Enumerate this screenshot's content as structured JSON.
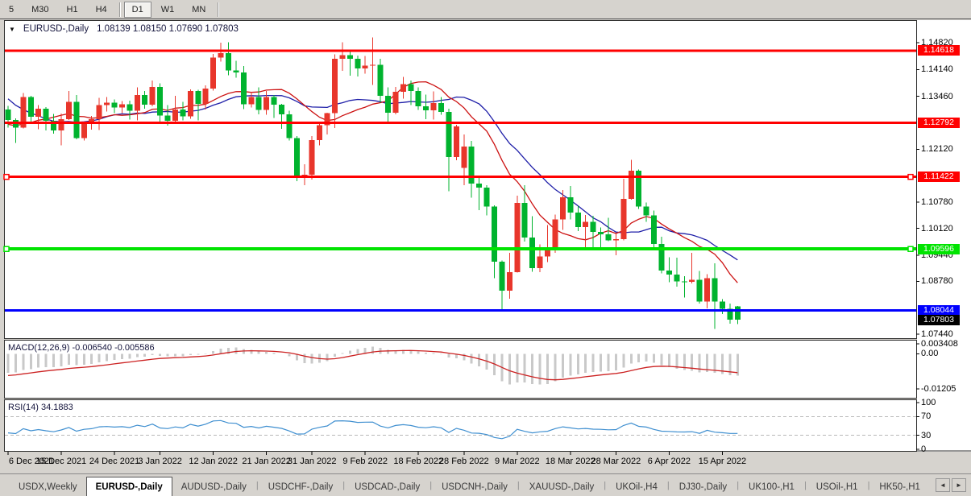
{
  "toolbar": {
    "buttons": [
      {
        "label": "5",
        "active": false
      },
      {
        "label": "M30",
        "active": false
      },
      {
        "label": "H1",
        "active": false
      },
      {
        "label": "H4",
        "active": false
      },
      {
        "label": "D1",
        "active": true
      },
      {
        "label": "W1",
        "active": false
      },
      {
        "label": "MN",
        "active": false
      }
    ],
    "group_breaks_after": [
      "H4",
      "MN"
    ]
  },
  "chart": {
    "title": {
      "collapse": "▼",
      "symbol": "EURUSD-,Daily",
      "ohlc": "1.08139 1.08150 1.07690 1.07803"
    },
    "price_axis": {
      "ticks": [
        {
          "label": "1.14820",
          "price": 1.1482
        },
        {
          "label": "1.14140",
          "price": 1.1414
        },
        {
          "label": "1.13460",
          "price": 1.1346
        },
        {
          "label": "1.12120",
          "price": 1.1212
        },
        {
          "label": "1.10780",
          "price": 1.1078
        },
        {
          "label": "1.10120",
          "price": 1.1012
        },
        {
          "label": "1.09440",
          "price": 1.0944
        },
        {
          "label": "1.08780",
          "price": 1.0878
        },
        {
          "label": "1.07440",
          "price": 1.0744
        }
      ]
    },
    "hlines": [
      {
        "label": "1.14618",
        "price": 1.14618,
        "color": "#ff0000",
        "width": 3,
        "selected": false
      },
      {
        "label": "1.12792",
        "price": 1.12792,
        "color": "#ff0000",
        "width": 3,
        "selected": false
      },
      {
        "label": "1.11422",
        "price": 1.11422,
        "color": "#ff0000",
        "width": 3,
        "selected": true
      },
      {
        "label": "1.09596",
        "price": 1.09596,
        "color": "#00e400",
        "width": 4,
        "selected": true
      },
      {
        "label": "1.08044",
        "price": 1.08044,
        "color": "#0000ff",
        "width": 3,
        "selected": false
      }
    ],
    "current_price": {
      "label": "1.07803",
      "price": 1.07803,
      "bg": "#000000"
    },
    "colors": {
      "bull": "#e8362b",
      "bear": "#00b32e",
      "ma_fast": "#cc1111",
      "ma_slow": "#1f1fa8",
      "macd_bar": "#c9c9c9",
      "macd_signal": "#cc2222",
      "rsi_line": "#3f8fd0",
      "window_bg": "#d6d3ce"
    },
    "moving_averages": [
      {
        "name": "ma-fast",
        "period": 13,
        "color_key": "ma_fast"
      },
      {
        "name": "ma-slow",
        "period": 20,
        "color_key": "ma_slow"
      }
    ],
    "date_axis": [
      {
        "label": "6 Dec 2021",
        "i": 0
      },
      {
        "label": "15 Dec 2021",
        "i": 7
      },
      {
        "label": "24 Dec 2021",
        "i": 14
      },
      {
        "label": "3 Jan 2022",
        "i": 20
      },
      {
        "label": "12 Jan 2022",
        "i": 27
      },
      {
        "label": "21 Jan 2022",
        "i": 34
      },
      {
        "label": "31 Jan 2022",
        "i": 40
      },
      {
        "label": "9 Feb 2022",
        "i": 47
      },
      {
        "label": "18 Feb 2022",
        "i": 54
      },
      {
        "label": "28 Feb 2022",
        "i": 60
      },
      {
        "label": "9 Mar 2022",
        "i": 67
      },
      {
        "label": "18 Mar 2022",
        "i": 74
      },
      {
        "label": "28 Mar 2022",
        "i": 80
      },
      {
        "label": "6 Apr 2022",
        "i": 87
      },
      {
        "label": "15 Apr 2022",
        "i": 94
      }
    ],
    "prehistory_closes": [
      1.1605,
      1.158,
      1.157,
      1.1556,
      1.1567,
      1.1588,
      1.1592,
      1.1559,
      1.1478,
      1.1445,
      1.145,
      1.1372,
      1.132,
      1.1315,
      1.128,
      1.1254,
      1.1236,
      1.1245,
      1.1198,
      1.1225,
      1.1278,
      1.133,
      1.1287,
      1.134,
      1.1305
    ],
    "candles": [
      [
        1.1313,
        1.1322,
        1.1267,
        1.1286
      ],
      [
        1.1286,
        1.129,
        1.1228,
        1.1267
      ],
      [
        1.1267,
        1.1355,
        1.1265,
        1.1344
      ],
      [
        1.1344,
        1.1347,
        1.128,
        1.1294
      ],
      [
        1.1294,
        1.1324,
        1.1263,
        1.1315
      ],
      [
        1.1315,
        1.1319,
        1.126,
        1.1284
      ],
      [
        1.1284,
        1.1302,
        1.1252,
        1.126
      ],
      [
        1.126,
        1.1303,
        1.1222,
        1.1288
      ],
      [
        1.1288,
        1.136,
        1.1286,
        1.1332
      ],
      [
        1.1332,
        1.1349,
        1.1237,
        1.124
      ],
      [
        1.124,
        1.1282,
        1.1234,
        1.1276
      ],
      [
        1.1276,
        1.1296,
        1.1262,
        1.1288
      ],
      [
        1.1288,
        1.1342,
        1.1261,
        1.1324
      ],
      [
        1.1324,
        1.1344,
        1.1308,
        1.133
      ],
      [
        1.133,
        1.1338,
        1.1304,
        1.1318
      ],
      [
        1.1318,
        1.1334,
        1.1304,
        1.1326
      ],
      [
        1.1326,
        1.1335,
        1.1287,
        1.131
      ],
      [
        1.131,
        1.1369,
        1.1285,
        1.1349
      ],
      [
        1.1349,
        1.136,
        1.1315,
        1.1325
      ],
      [
        1.1325,
        1.1386,
        1.1321,
        1.137
      ],
      [
        1.137,
        1.1379,
        1.1279,
        1.1297
      ],
      [
        1.1297,
        1.1324,
        1.1272,
        1.1284
      ],
      [
        1.1284,
        1.1347,
        1.128,
        1.1313
      ],
      [
        1.1313,
        1.1332,
        1.1285,
        1.1295
      ],
      [
        1.1295,
        1.1364,
        1.1289,
        1.136
      ],
      [
        1.136,
        1.1363,
        1.1285,
        1.1327
      ],
      [
        1.1327,
        1.1374,
        1.1313,
        1.1366
      ],
      [
        1.1366,
        1.1453,
        1.1361,
        1.1444
      ],
      [
        1.1444,
        1.1482,
        1.1434,
        1.1455
      ],
      [
        1.1455,
        1.1483,
        1.1399,
        1.1412
      ],
      [
        1.1412,
        1.1436,
        1.1393,
        1.1407
      ],
      [
        1.1407,
        1.1423,
        1.1314,
        1.1326
      ],
      [
        1.1326,
        1.1358,
        1.1318,
        1.1344
      ],
      [
        1.1344,
        1.1369,
        1.1301,
        1.1312
      ],
      [
        1.1312,
        1.136,
        1.13,
        1.1344
      ],
      [
        1.1344,
        1.1349,
        1.1291,
        1.1325
      ],
      [
        1.1325,
        1.1327,
        1.1264,
        1.1301
      ],
      [
        1.1301,
        1.131,
        1.1234,
        1.124
      ],
      [
        1.124,
        1.1245,
        1.1131,
        1.1145
      ],
      [
        1.1145,
        1.1174,
        1.1121,
        1.1148
      ],
      [
        1.1148,
        1.1245,
        1.1135,
        1.1235
      ],
      [
        1.1235,
        1.1279,
        1.1222,
        1.1273
      ],
      [
        1.1273,
        1.1305,
        1.125,
        1.1304
      ],
      [
        1.1304,
        1.1452,
        1.1266,
        1.1441
      ],
      [
        1.1441,
        1.1483,
        1.1411,
        1.145
      ],
      [
        1.145,
        1.1459,
        1.1398,
        1.1441
      ],
      [
        1.1441,
        1.1449,
        1.1396,
        1.1417
      ],
      [
        1.1417,
        1.1448,
        1.1404,
        1.1424
      ],
      [
        1.1424,
        1.1495,
        1.1375,
        1.1426
      ],
      [
        1.1426,
        1.1441,
        1.133,
        1.1347
      ],
      [
        1.1347,
        1.1369,
        1.1278,
        1.1305
      ],
      [
        1.1305,
        1.137,
        1.1301,
        1.1358
      ],
      [
        1.1358,
        1.1395,
        1.134,
        1.1377
      ],
      [
        1.1377,
        1.1386,
        1.1324,
        1.136
      ],
      [
        1.136,
        1.1369,
        1.1312,
        1.1321
      ],
      [
        1.1321,
        1.135,
        1.1288,
        1.1311
      ],
      [
        1.1311,
        1.1359,
        1.1287,
        1.1329
      ],
      [
        1.1329,
        1.1344,
        1.13,
        1.1307
      ],
      [
        1.1307,
        1.1315,
        1.1106,
        1.1193
      ],
      [
        1.1193,
        1.1274,
        1.1184,
        1.127
      ],
      [
        1.1165,
        1.125,
        1.1121,
        1.1219
      ],
      [
        1.1219,
        1.1233,
        1.109,
        1.1125
      ],
      [
        1.1125,
        1.1144,
        1.1058,
        1.1115
      ],
      [
        1.1115,
        1.1121,
        1.1045,
        1.1067
      ],
      [
        1.1067,
        1.107,
        1.0886,
        1.0927
      ],
      [
        1.0927,
        1.0931,
        1.0806,
        1.0854
      ],
      [
        1.0854,
        1.095,
        1.0834,
        1.0901
      ],
      [
        1.0901,
        1.1095,
        1.09,
        1.1076
      ],
      [
        1.1076,
        1.1121,
        1.0978,
        1.0989
      ],
      [
        1.0989,
        1.1043,
        1.0902,
        1.0911
      ],
      [
        1.0911,
        1.0971,
        1.0901,
        1.0941
      ],
      [
        1.0941,
        1.102,
        1.0926,
        1.0957
      ],
      [
        1.0957,
        1.1047,
        1.095,
        1.1035
      ],
      [
        1.1035,
        1.1109,
        1.1008,
        1.1091
      ],
      [
        1.1091,
        1.1119,
        1.1035,
        1.1052
      ],
      [
        1.1052,
        1.1069,
        1.1005,
        1.1015
      ],
      [
        1.1015,
        1.1046,
        1.0961,
        1.1028
      ],
      [
        1.1028,
        1.1044,
        1.0963,
        1.1003
      ],
      [
        1.1003,
        1.1014,
        1.096,
        1.0997
      ],
      [
        1.0997,
        1.1039,
        1.0979,
        1.0982
      ],
      [
        1.0982,
        1.0999,
        1.0944,
        1.0985
      ],
      [
        1.0985,
        1.1137,
        1.0981,
        1.1086
      ],
      [
        1.1086,
        1.1185,
        1.1084,
        1.1158
      ],
      [
        1.1158,
        1.1161,
        1.1061,
        1.1067
      ],
      [
        1.1067,
        1.1077,
        1.1028,
        1.1045
      ],
      [
        1.1045,
        1.1057,
        1.0961,
        1.0972
      ],
      [
        1.0972,
        1.0991,
        1.0898,
        1.0905
      ],
      [
        1.0905,
        1.0939,
        1.0875,
        1.0895
      ],
      [
        1.0895,
        1.0938,
        1.0864,
        1.0878
      ],
      [
        1.0878,
        1.0891,
        1.0837,
        1.0876
      ],
      [
        1.0876,
        1.095,
        1.0872,
        1.0882
      ],
      [
        1.0882,
        1.0904,
        1.0821,
        1.0827
      ],
      [
        1.0827,
        1.0896,
        1.0809,
        1.0886
      ],
      [
        1.0886,
        1.0923,
        1.0757,
        1.0827
      ],
      [
        1.0827,
        1.0833,
        1.0795,
        1.0808
      ],
      [
        1.0808,
        1.0821,
        1.077,
        1.0781
      ],
      [
        1.08139,
        1.0815,
        1.0769,
        1.07803
      ]
    ]
  },
  "macd": {
    "name": "MACD(12,26,9)",
    "values": "-0.006540 -0.005586",
    "fast": 12,
    "slow": 26,
    "signal": 9,
    "axis": {
      "max_label": "0.003408",
      "zero_label": "0.00",
      "min_label": "-0.01205",
      "max": 0.003408,
      "min": -0.01205
    }
  },
  "rsi": {
    "name": "RSI(14)",
    "value": "34.1883",
    "period": 14,
    "levels": [
      70,
      30
    ],
    "axis_labels": [
      "100",
      "70",
      "30",
      "0"
    ],
    "axis_values": [
      100,
      70,
      30,
      0
    ]
  },
  "tabs": {
    "items": [
      {
        "label": "USDX,Weekly",
        "active": false
      },
      {
        "label": "EURUSD-,Daily",
        "active": true
      },
      {
        "label": "AUDUSD-,Daily",
        "active": false
      },
      {
        "label": "USDCHF-,Daily",
        "active": false
      },
      {
        "label": "USDCAD-,Daily",
        "active": false
      },
      {
        "label": "USDCNH-,Daily",
        "active": false
      },
      {
        "label": "XAUUSD-,Daily",
        "active": false
      },
      {
        "label": "UKOil-,H4",
        "active": false
      },
      {
        "label": "DJ30-,Daily",
        "active": false
      },
      {
        "label": "UK100-,H1",
        "active": false
      },
      {
        "label": "USOil-,H1",
        "active": false
      },
      {
        "label": "HK50-,H1",
        "active": false
      }
    ],
    "scroll_left": "◄",
    "scroll_right": "►"
  }
}
